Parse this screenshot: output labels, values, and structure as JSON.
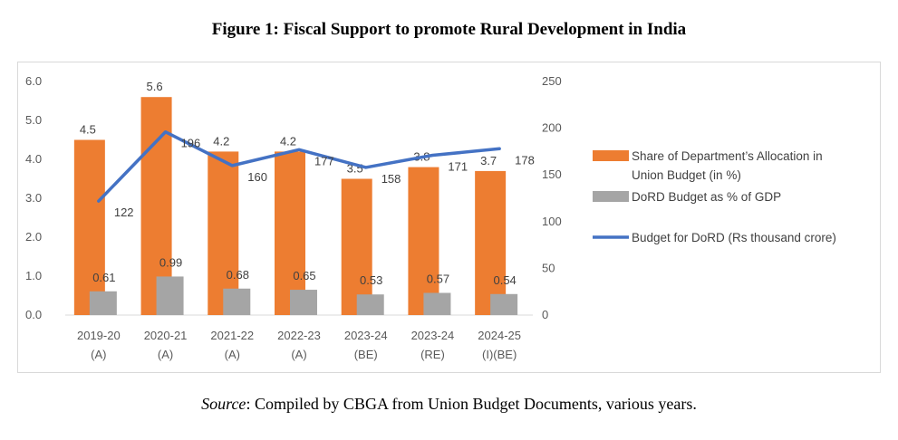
{
  "figure_title": "Figure 1: Fiscal Support to promote Rural Development in India",
  "source": {
    "label": "Source",
    "text": ": Compiled by CBGA from Union Budget Documents, various years."
  },
  "chart_data": {
    "type": "bar",
    "categories": [
      [
        "2019-20",
        "(A)"
      ],
      [
        "2020-21",
        "(A)"
      ],
      [
        "2021-22",
        "(A)"
      ],
      [
        "2022-23",
        "(A)"
      ],
      [
        "2023-24",
        "(BE)"
      ],
      [
        "2023-24",
        "(RE)"
      ],
      [
        "2024-25",
        "(I)(BE)"
      ]
    ],
    "y_left": {
      "ticks": [
        "0.0",
        "1.0",
        "2.0",
        "3.0",
        "4.0",
        "5.0",
        "6.0"
      ],
      "lim": [
        0,
        6
      ]
    },
    "y_right": {
      "ticks": [
        "0",
        "50",
        "100",
        "150",
        "200",
        "250"
      ],
      "lim": [
        0,
        250
      ]
    },
    "series": [
      {
        "name": "Share of Department’s Allocation in Union Budget (in %)",
        "kind": "bar",
        "axis": "left",
        "color": "#ED7D31",
        "values": [
          4.5,
          5.6,
          4.2,
          4.2,
          3.5,
          3.8,
          3.7
        ],
        "labels": [
          "4.5",
          "5.6",
          "4.2",
          "4.2",
          "3.5",
          "3.8",
          "3.7"
        ]
      },
      {
        "name": "DoRD Budget as % of GDP",
        "kind": "bar",
        "axis": "left",
        "color": "#A5A5A5",
        "values": [
          0.61,
          0.99,
          0.68,
          0.65,
          0.53,
          0.57,
          0.54
        ],
        "labels": [
          "0.61",
          "0.99",
          "0.68",
          "0.65",
          "0.53",
          "0.57",
          "0.54"
        ]
      },
      {
        "name": "Budget for DoRD (Rs thousand crore)",
        "kind": "line",
        "axis": "right",
        "color": "#4472C4",
        "values": [
          122,
          196,
          160,
          177,
          158,
          171,
          178
        ],
        "labels": [
          "122",
          "196",
          "160",
          "177",
          "158",
          "171",
          "178"
        ]
      }
    ],
    "legend": {
      "position": "right",
      "entries": [
        [
          "Share of Department’s Allocation in",
          "Union Budget (in %)"
        ],
        [
          "DoRD Budget as % of GDP"
        ],
        [
          "Budget for DoRD (Rs thousand crore)"
        ]
      ]
    },
    "grid": false
  }
}
